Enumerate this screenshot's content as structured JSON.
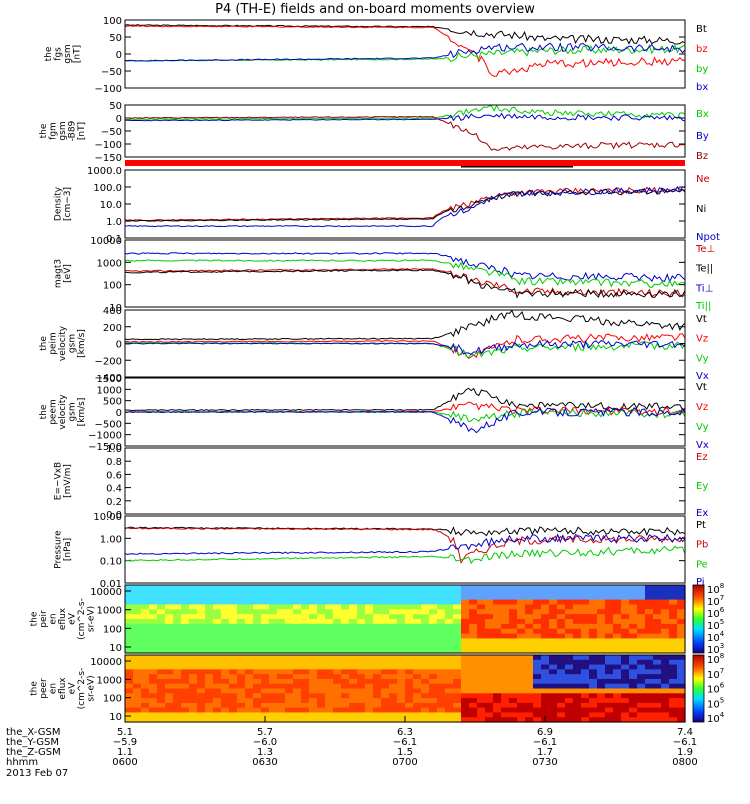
{
  "title": "P4 (TH-E) fields and on-board moments overview",
  "chart_data": [
    {
      "type": "line",
      "id": "fgs",
      "ylabel": [
        "the",
        "fgs",
        "gsm",
        "[nT]"
      ],
      "ylim": [
        -100,
        100
      ],
      "ticks": [
        "100",
        "50",
        "0",
        "−50",
        "−100"
      ],
      "tick_values": [
        100,
        50,
        0,
        -50,
        -100
      ],
      "legend": [
        {
          "name": "Bt",
          "color": "#000000"
        },
        {
          "name": "bz",
          "color": "#ff0000"
        },
        {
          "name": "by",
          "color": "#00cc00"
        },
        {
          "name": "bx",
          "color": "#0000cc"
        }
      ],
      "series": [
        {
          "name": "Bt",
          "x": [
            0,
            0.55,
            0.65,
            0.7,
            0.75,
            1
          ],
          "y": [
            85,
            80,
            60,
            55,
            45,
            40
          ]
        },
        {
          "name": "bz",
          "x": [
            0,
            0.55,
            0.62,
            0.66,
            0.75,
            1
          ],
          "y": [
            82,
            78,
            10,
            -60,
            -30,
            -20
          ]
        },
        {
          "name": "by",
          "x": [
            0,
            0.55,
            0.65,
            0.75,
            1
          ],
          "y": [
            -20,
            -15,
            0,
            10,
            15
          ]
        },
        {
          "name": "bx",
          "x": [
            0,
            0.55,
            0.65,
            0.75,
            1
          ],
          "y": [
            -20,
            -12,
            20,
            20,
            15
          ]
        }
      ]
    },
    {
      "type": "line",
      "id": "fgm",
      "ylabel": [
        "the",
        "fgm",
        "gsm",
        "-B89",
        "[nT]"
      ],
      "ylim": [
        -150,
        50
      ],
      "ticks": [
        "50",
        "0",
        "−50",
        "−100",
        "−150"
      ],
      "tick_values": [
        50,
        0,
        -50,
        -100,
        -150
      ],
      "legend": [
        {
          "name": "Bx",
          "color": "#00cc00"
        },
        {
          "name": "By",
          "color": "#0000cc"
        },
        {
          "name": "Bz",
          "color": "#990000"
        }
      ],
      "series": [
        {
          "name": "Bx",
          "x": [
            0,
            0.55,
            0.65,
            0.75,
            1
          ],
          "y": [
            -5,
            0,
            40,
            20,
            10
          ]
        },
        {
          "name": "By",
          "x": [
            0,
            0.55,
            0.65,
            0.75,
            1
          ],
          "y": [
            -10,
            -5,
            10,
            5,
            0
          ]
        },
        {
          "name": "Bz",
          "x": [
            0,
            0.55,
            0.62,
            0.66,
            0.75,
            1
          ],
          "y": [
            0,
            5,
            -60,
            -120,
            -110,
            -100
          ]
        }
      ]
    },
    {
      "type": "line",
      "id": "density",
      "scale": "log",
      "ylabel": [
        "Density",
        "[cm−3]"
      ],
      "ylim": [
        0.1,
        1000
      ],
      "ticks": [
        "1000.0",
        "100.0",
        "10.0",
        "1.0",
        "0.1"
      ],
      "tick_values": [
        1000,
        100,
        10,
        1,
        0.1
      ],
      "legend": [
        {
          "name": "Ne",
          "color": "#cc0000"
        },
        {
          "name": "Ni",
          "color": "#000000"
        },
        {
          "name": "Npot",
          "color": "#0000cc"
        }
      ],
      "series": [
        {
          "name": "Ne",
          "x": [
            0,
            0.55,
            0.62,
            0.7,
            1
          ],
          "y": [
            1.1,
            1.5,
            10,
            50,
            70
          ]
        },
        {
          "name": "Ni",
          "x": [
            0,
            0.55,
            0.62,
            0.7,
            1
          ],
          "y": [
            1.0,
            1.3,
            8,
            40,
            60
          ]
        },
        {
          "name": "Npot",
          "x": [
            0,
            0.55,
            0.62,
            0.7,
            1
          ],
          "y": [
            0.5,
            0.5,
            5,
            40,
            70
          ]
        }
      ]
    },
    {
      "type": "line",
      "id": "temperature",
      "scale": "log",
      "ylabel": [
        "magt3",
        "[eV]"
      ],
      "ylim": [
        10,
        10000
      ],
      "ticks": [
        "10000",
        "1000",
        "100",
        "10"
      ],
      "tick_values": [
        10000,
        1000,
        100,
        10
      ],
      "legend": [
        {
          "name": "Te⊥",
          "color": "#cc0000"
        },
        {
          "name": "Te||",
          "color": "#000000"
        },
        {
          "name": "Ti⊥",
          "color": "#0000cc"
        },
        {
          "name": "Ti||",
          "color": "#00cc00"
        }
      ],
      "series": [
        {
          "name": "Te⊥",
          "x": [
            0,
            0.55,
            0.62,
            0.7,
            1
          ],
          "y": [
            400,
            500,
            150,
            50,
            40
          ]
        },
        {
          "name": "Te||",
          "x": [
            0,
            0.55,
            0.62,
            0.7,
            1
          ],
          "y": [
            350,
            450,
            120,
            40,
            40
          ]
        },
        {
          "name": "Ti⊥",
          "x": [
            0,
            0.55,
            0.62,
            0.7,
            1
          ],
          "y": [
            2500,
            2500,
            800,
            250,
            200
          ]
        },
        {
          "name": "Ti||",
          "x": [
            0,
            0.55,
            0.62,
            0.7,
            1
          ],
          "y": [
            1200,
            1200,
            500,
            150,
            100
          ]
        }
      ]
    },
    {
      "type": "line",
      "id": "peim-velocity",
      "ylabel": [
        "the",
        "peim",
        "velocity",
        "gsm",
        "[km/s]"
      ],
      "ylim": [
        -400,
        400
      ],
      "ticks": [
        "400",
        "200",
        "0",
        "−200",
        "−400"
      ],
      "tick_values": [
        400,
        200,
        0,
        -200,
        -400
      ],
      "legend": [
        {
          "name": "Vt",
          "color": "#000000"
        },
        {
          "name": "Vz",
          "color": "#ff0000"
        },
        {
          "name": "Vy",
          "color": "#00cc00"
        },
        {
          "name": "Vx",
          "color": "#0000cc"
        }
      ],
      "series": [
        {
          "name": "Vt",
          "x": [
            0,
            0.55,
            0.62,
            0.68,
            1
          ],
          "y": [
            50,
            60,
            200,
            350,
            200
          ]
        },
        {
          "name": "Vz",
          "x": [
            0,
            0.55,
            0.62,
            0.7,
            1
          ],
          "y": [
            20,
            30,
            -150,
            50,
            80
          ]
        },
        {
          "name": "Vy",
          "x": [
            0,
            0.55,
            0.62,
            0.7,
            1
          ],
          "y": [
            10,
            0,
            -150,
            -50,
            -20
          ]
        },
        {
          "name": "Vx",
          "x": [
            0,
            0.55,
            0.62,
            0.7,
            1
          ],
          "y": [
            0,
            0,
            -100,
            -10,
            0
          ]
        }
      ]
    },
    {
      "type": "line",
      "id": "peem-velocity",
      "ylabel": [
        "the",
        "peem",
        "velocity",
        "gsm",
        "[km/s]"
      ],
      "ylim": [
        -1500,
        1500
      ],
      "ticks": [
        "1500",
        "1000",
        "500",
        "0",
        "−500",
        "−1000",
        "−1500"
      ],
      "tick_values": [
        1500,
        1000,
        500,
        0,
        -500,
        -1000,
        -1500
      ],
      "legend": [
        {
          "name": "Vt",
          "color": "#000000"
        },
        {
          "name": "Vz",
          "color": "#ff0000"
        },
        {
          "name": "Vy",
          "color": "#00cc00"
        },
        {
          "name": "Vx",
          "color": "#0000cc"
        }
      ],
      "series": [
        {
          "name": "Vt",
          "x": [
            0,
            0.55,
            0.62,
            0.7,
            1
          ],
          "y": [
            80,
            100,
            1000,
            300,
            200
          ]
        },
        {
          "name": "Vz",
          "x": [
            0,
            0.55,
            0.62,
            0.7,
            1
          ],
          "y": [
            0,
            20,
            300,
            50,
            40
          ]
        },
        {
          "name": "Vy",
          "x": [
            0,
            0.55,
            0.62,
            0.7,
            1
          ],
          "y": [
            0,
            0,
            -300,
            -50,
            -80
          ]
        },
        {
          "name": "Vx",
          "x": [
            0,
            0.55,
            0.62,
            0.7,
            1
          ],
          "y": [
            0,
            0,
            -800,
            0,
            0
          ]
        }
      ]
    },
    {
      "type": "line",
      "id": "exb",
      "ylabel": [
        "E=−VxB",
        "[mV/m]"
      ],
      "ylim": [
        0,
        1
      ],
      "ticks": [
        "1.0",
        "0.8",
        "0.6",
        "0.4",
        "0.2",
        "0.0"
      ],
      "tick_values": [
        1,
        0.8,
        0.6,
        0.4,
        0.2,
        0
      ],
      "legend": [
        {
          "name": "Ez",
          "color": "#cc0000"
        },
        {
          "name": "Ey",
          "color": "#00cc00"
        },
        {
          "name": "Ex",
          "color": "#0000cc"
        }
      ],
      "series": []
    },
    {
      "type": "line",
      "id": "pressure",
      "scale": "log",
      "ylabel": [
        "Pressure",
        "[nPa]"
      ],
      "ylim": [
        0.01,
        10
      ],
      "ticks": [
        "10.00",
        "1.00",
        "0.10",
        "0.01"
      ],
      "tick_values": [
        10,
        1,
        0.1,
        0.01
      ],
      "legend": [
        {
          "name": "Pt",
          "color": "#000000"
        },
        {
          "name": "Pb",
          "color": "#cc0000"
        },
        {
          "name": "Pe",
          "color": "#00cc00"
        },
        {
          "name": "Pi",
          "color": "#0000cc"
        }
      ],
      "series": [
        {
          "name": "Pt",
          "x": [
            0,
            0.55,
            0.62,
            0.7,
            1
          ],
          "y": [
            3.0,
            2.6,
            1.8,
            2.2,
            2.0
          ]
        },
        {
          "name": "Pb",
          "x": [
            0,
            0.55,
            0.6,
            0.64,
            0.7,
            1
          ],
          "y": [
            2.8,
            2.5,
            0.1,
            0.3,
            0.8,
            1.0
          ]
        },
        {
          "name": "Pe",
          "x": [
            0,
            0.55,
            0.62,
            0.7,
            1
          ],
          "y": [
            0.1,
            0.15,
            0.1,
            0.2,
            0.3
          ]
        },
        {
          "name": "Pi",
          "x": [
            0,
            0.55,
            0.62,
            0.7,
            1
          ],
          "y": [
            0.2,
            0.25,
            0.5,
            1.0,
            1.0
          ]
        }
      ]
    },
    {
      "type": "heatmap",
      "id": "peir-eflux",
      "ylabel": [
        "the",
        "peir",
        "en",
        "eflux",
        "eV",
        "(cm^2-s-",
        "sr-eV)"
      ],
      "ticks": [
        "10000",
        "1000",
        "100",
        "10"
      ],
      "colorbar_ticks": [
        "10^8",
        "10^7",
        "10^6",
        "10^5",
        "10^4",
        "10^3"
      ]
    },
    {
      "type": "heatmap",
      "id": "peer-eflux",
      "ylabel": [
        "the",
        "peer",
        "en",
        "eflux",
        "eV",
        "(cm^2-s-",
        "sr-eV)"
      ],
      "ticks": [
        "10000",
        "1000",
        "100",
        "10"
      ],
      "colorbar_ticks": [
        "10^8",
        "10^7",
        "10^6",
        "10^5",
        "10^4"
      ]
    }
  ],
  "x_axis": {
    "row_labels": [
      "the_X-GSM",
      "the_Y-GSM",
      "the_Z-GSM",
      "hhmm"
    ],
    "date": "2013 Feb 07",
    "ticks": [
      {
        "X": "5.1",
        "Y": "−5.9",
        "Z": "1.1",
        "time": "0600"
      },
      {
        "X": "5.7",
        "Y": "−6.0",
        "Z": "1.3",
        "time": "0630"
      },
      {
        "X": "6.3",
        "Y": "−6.1",
        "Z": "1.5",
        "time": "0700"
      },
      {
        "X": "6.9",
        "Y": "−6.1",
        "Z": "1.7",
        "time": "0730"
      },
      {
        "X": "7.4",
        "Y": "−6.1",
        "Z": "1.9",
        "time": "0800"
      }
    ]
  }
}
